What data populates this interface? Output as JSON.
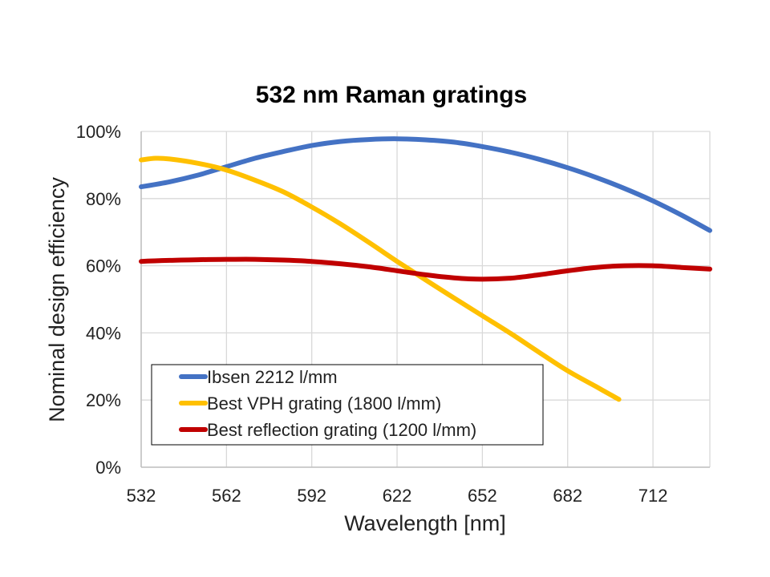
{
  "chart_data": {
    "type": "line",
    "title": "532 nm Raman gratings",
    "xlabel": "Wavelength [nm]",
    "ylabel": "Nominal design efficiency",
    "xlim": [
      532,
      732
    ],
    "ylim": [
      0,
      100
    ],
    "x_ticks": [
      532,
      562,
      592,
      622,
      652,
      682,
      712
    ],
    "y_ticks": [
      0,
      20,
      40,
      60,
      80,
      100
    ],
    "y_tick_labels": [
      "0%",
      "20%",
      "40%",
      "60%",
      "80%",
      "100%"
    ],
    "grid": true,
    "legend_position": "bottom-left inside plot",
    "series": [
      {
        "name": "Ibsen 2212 l/mm",
        "color": "#4472C4",
        "x": [
          532,
          542,
          552,
          562,
          572,
          582,
          592,
          602,
          612,
          622,
          632,
          642,
          652,
          662,
          672,
          682,
          692,
          702,
          712,
          722,
          732
        ],
        "y": [
          83.5,
          85,
          87,
          89.5,
          92,
          94,
          95.8,
          97,
          97.6,
          97.8,
          97.5,
          96.8,
          95.5,
          93.8,
          91.7,
          89.2,
          86.3,
          83,
          79.3,
          75.1,
          70.5
        ]
      },
      {
        "name": "Best VPH grating (1800 l/mm)",
        "color": "#FFC000",
        "x": [
          532,
          537,
          542,
          552,
          562,
          572,
          582,
          592,
          602,
          612,
          622,
          632,
          642,
          652,
          662,
          672,
          682,
          692,
          700
        ],
        "y": [
          91.5,
          92,
          91.8,
          90.5,
          88.5,
          85.5,
          82,
          77.5,
          72.5,
          67,
          61.3,
          55.8,
          50.4,
          45.1,
          39.8,
          34.2,
          28.7,
          24,
          20.2
        ]
      },
      {
        "name": "Best reflection grating (1200 l/mm)",
        "color": "#C00000",
        "x": [
          532,
          542,
          552,
          562,
          572,
          582,
          592,
          602,
          612,
          622,
          632,
          642,
          652,
          662,
          672,
          682,
          692,
          702,
          712,
          722,
          732
        ],
        "y": [
          61.3,
          61.6,
          61.8,
          61.9,
          61.9,
          61.7,
          61.3,
          60.6,
          59.7,
          58.5,
          57.3,
          56.4,
          56,
          56.3,
          57.3,
          58.5,
          59.5,
          60,
          60,
          59.5,
          59
        ]
      }
    ]
  }
}
